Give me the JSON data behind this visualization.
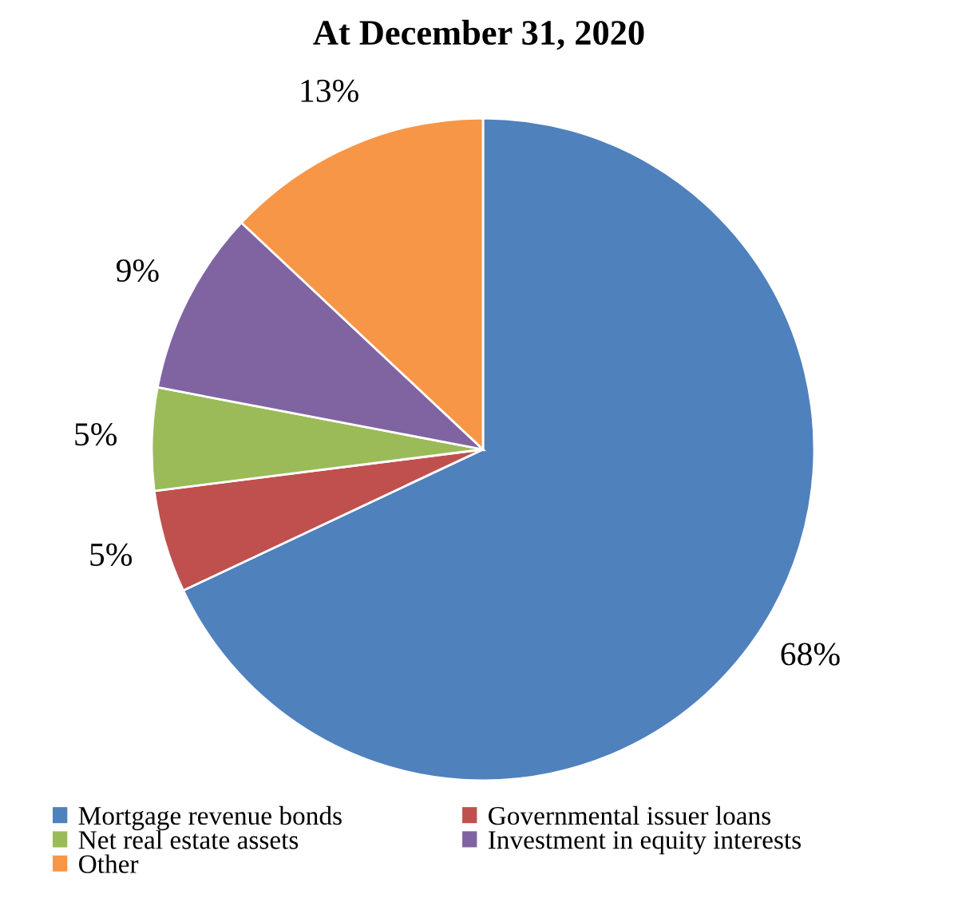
{
  "chart_data": {
    "type": "pie",
    "title": "At December 31, 2020",
    "categories": [
      "Mortgage revenue bonds",
      "Governmental issuer loans",
      "Net real estate assets",
      "Investment in equity interests",
      "Other"
    ],
    "values": [
      68,
      5,
      5,
      9,
      13
    ],
    "colors": [
      "#4f81bd",
      "#c0504d",
      "#9bbb59",
      "#8064a2",
      "#f79646"
    ],
    "value_labels": [
      "68%",
      "5%",
      "5%",
      "9%",
      "13%"
    ],
    "legend": "bottom"
  }
}
